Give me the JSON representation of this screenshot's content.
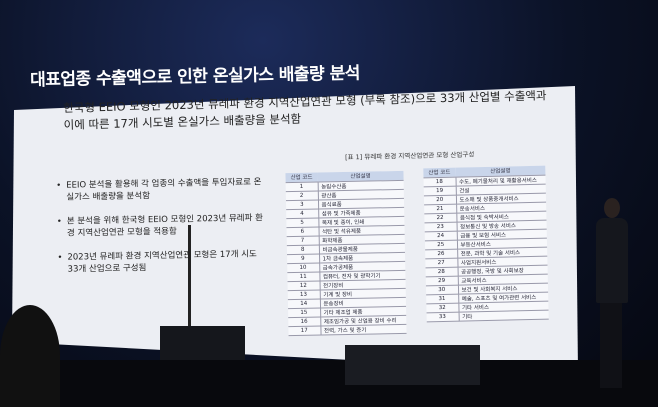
{
  "slide": {
    "title": "대표업종 수출액으로 인한 온실가스 배출량 분석",
    "subtitle_line1": "한국형 EEIO 모형인 2023년 뮤레파 환경 지역산업연관 모형 (부록 참조)으로 33개 산업별 수출액과",
    "subtitle_line2": "이에 따른 17개 시도별 온실가스 배출량을 분석함",
    "bullets": [
      "EEIO 분석을 활용해 각 업종의 수출액을 투입자료로 온실가스 배출량을 분석함",
      "본 분석을 위해 한국형 EEIO 모형인 2023년 뮤레파 환경 지역산업연관 모형을 적용함",
      "2023년 뮤레파 환경 지역산업연관 모형은 17개 시도 33개 산업으로 구성됨"
    ],
    "table_caption": "[표 1] 뮤레파 환경 지역산업연관 모형 산업구성",
    "table_headers": [
      "산업 코드",
      "산업설명"
    ],
    "table_left": [
      [
        "1",
        "농림수산품"
      ],
      [
        "2",
        "광산품"
      ],
      [
        "3",
        "음식료품"
      ],
      [
        "4",
        "섬유 및 가죽제품"
      ],
      [
        "5",
        "목재 및 종이, 인쇄"
      ],
      [
        "6",
        "석탄 및 석유제품"
      ],
      [
        "7",
        "화학제품"
      ],
      [
        "8",
        "비금속광물제품"
      ],
      [
        "9",
        "1차 금속제품"
      ],
      [
        "10",
        "금속가공제품"
      ],
      [
        "11",
        "컴퓨터, 전자 및 광학기기"
      ],
      [
        "12",
        "전기장비"
      ],
      [
        "13",
        "기계 및 장비"
      ],
      [
        "14",
        "운송장비"
      ],
      [
        "15",
        "기타 제조업 제품"
      ],
      [
        "16",
        "제조임가공 및 산업용 장비 수리"
      ],
      [
        "17",
        "전력, 가스 및 증기"
      ]
    ],
    "table_right": [
      [
        "18",
        "수도, 폐기물처리 및 재활용서비스"
      ],
      [
        "19",
        "건설"
      ],
      [
        "20",
        "도소매 및 상품중개서비스"
      ],
      [
        "21",
        "운송서비스"
      ],
      [
        "22",
        "음식점 및 숙박서비스"
      ],
      [
        "23",
        "정보통신 및 방송 서비스"
      ],
      [
        "24",
        "금융 및 보험 서비스"
      ],
      [
        "25",
        "부동산서비스"
      ],
      [
        "26",
        "전문, 과학 및 기술 서비스"
      ],
      [
        "27",
        "사업지원서비스"
      ],
      [
        "28",
        "공공행정, 국방 및 사회보장"
      ],
      [
        "29",
        "교육서비스"
      ],
      [
        "30",
        "보건 및 사회복지 서비스"
      ],
      [
        "31",
        "예술, 스포츠 및 여가관련 서비스"
      ],
      [
        "32",
        "기타 서비스"
      ],
      [
        "33",
        "기타"
      ]
    ]
  }
}
